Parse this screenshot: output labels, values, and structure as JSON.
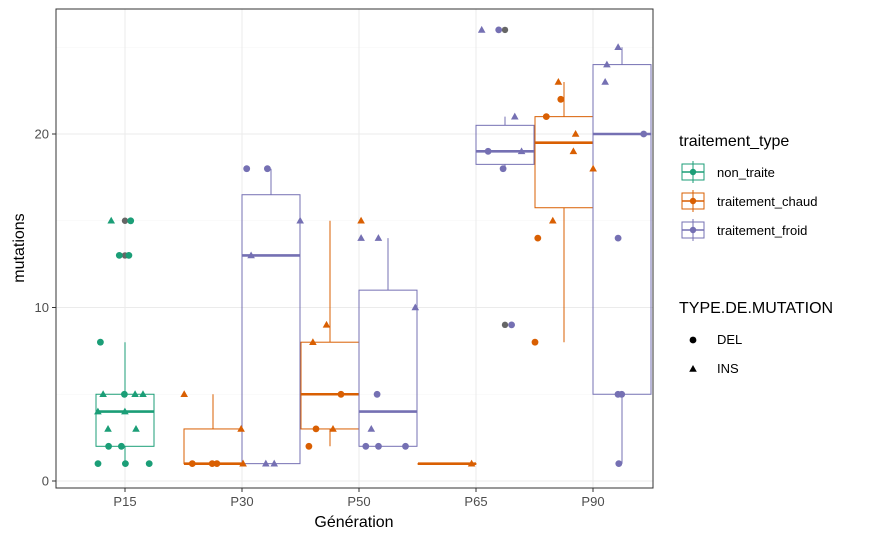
{
  "chart_data": {
    "type": "box",
    "xlabel": "Génération",
    "ylabel": "mutations",
    "categories": [
      "P15",
      "P30",
      "P50",
      "P65",
      "P90"
    ],
    "ylim": [
      -0.3,
      27.5
    ],
    "yticks": [
      0,
      10,
      20
    ],
    "grid": true,
    "series": [
      {
        "name": "non_traite",
        "color": "#1b9e77",
        "boxes": [
          {
            "category": "P15",
            "min": 1,
            "q1": 2,
            "median": 4,
            "q3": 5,
            "max": 8,
            "outliers": [
              13,
              15
            ]
          }
        ]
      },
      {
        "name": "traitement_chaud",
        "color": "#d95f02",
        "boxes": [
          {
            "category": "P30",
            "min": 1,
            "q1": 1,
            "median": 1,
            "q3": 3,
            "max": 5,
            "outliers": []
          },
          {
            "category": "P50",
            "min": 2,
            "q1": 3,
            "median": 5,
            "q3": 8,
            "max": 15,
            "outliers": []
          },
          {
            "category": "P65",
            "min": 1,
            "q1": 1,
            "median": 1,
            "q3": 1,
            "max": 1,
            "outliers": []
          },
          {
            "category": "P90",
            "min": 8,
            "q1": 15.75,
            "median": 19.5,
            "q3": 21,
            "max": 23,
            "outliers": []
          }
        ]
      },
      {
        "name": "traitement_froid",
        "color": "#7570b3",
        "boxes": [
          {
            "category": "P30",
            "min": 1,
            "q1": 1,
            "median": 13,
            "q3": 16.5,
            "max": 18,
            "outliers": []
          },
          {
            "category": "P50",
            "min": 2,
            "q1": 2,
            "median": 4,
            "q3": 11,
            "max": 14,
            "outliers": []
          },
          {
            "category": "P65",
            "min": 18,
            "q1": 18.25,
            "median": 19,
            "q3": 20.5,
            "max": 21,
            "outliers": [
              9,
              26
            ]
          },
          {
            "category": "P90",
            "min": 1,
            "q1": 5,
            "median": 20,
            "q3": 24,
            "max": 25,
            "outliers": []
          }
        ]
      }
    ],
    "points": [
      {
        "group": "non_traite",
        "category": "P15",
        "type": "DEL",
        "values": [
          5,
          13,
          8,
          2,
          2,
          1,
          1,
          1,
          15,
          13
        ]
      },
      {
        "group": "non_traite",
        "category": "P15",
        "type": "INS",
        "values": [
          15,
          5,
          5,
          4,
          4,
          3,
          3,
          5
        ]
      },
      {
        "group": "traitement_chaud",
        "category": "P30",
        "type": "DEL",
        "values": [
          1,
          1,
          1
        ]
      },
      {
        "group": "traitement_chaud",
        "category": "P30",
        "type": "INS",
        "values": [
          5,
          3,
          1
        ]
      },
      {
        "group": "traitement_froid",
        "category": "P30",
        "type": "DEL",
        "values": [
          18,
          18
        ]
      },
      {
        "group": "traitement_froid",
        "category": "P30",
        "type": "INS",
        "values": [
          15,
          13,
          1,
          1
        ]
      },
      {
        "group": "traitement_chaud",
        "category": "P50",
        "type": "DEL",
        "values": [
          5,
          3,
          2
        ]
      },
      {
        "group": "traitement_chaud",
        "category": "P50",
        "type": "INS",
        "values": [
          15,
          9,
          8,
          3
        ]
      },
      {
        "group": "traitement_froid",
        "category": "P50",
        "type": "DEL",
        "values": [
          5,
          2,
          2,
          2
        ]
      },
      {
        "group": "traitement_froid",
        "category": "P50",
        "type": "INS",
        "values": [
          14,
          14,
          10,
          3
        ]
      },
      {
        "group": "traitement_chaud",
        "category": "P65",
        "type": "INS",
        "values": [
          1
        ]
      },
      {
        "group": "traitement_froid",
        "category": "P65",
        "type": "DEL",
        "values": [
          18,
          19,
          9,
          26
        ]
      },
      {
        "group": "traitement_froid",
        "category": "P65",
        "type": "INS",
        "values": [
          19,
          21,
          26
        ]
      },
      {
        "group": "traitement_chaud",
        "category": "P90",
        "type": "DEL",
        "values": [
          21,
          22,
          14,
          8
        ]
      },
      {
        "group": "traitement_chaud",
        "category": "P90",
        "type": "INS",
        "values": [
          23,
          20,
          19,
          18,
          15
        ]
      },
      {
        "group": "traitement_froid",
        "category": "P90",
        "type": "DEL",
        "values": [
          5,
          5,
          14,
          20,
          1
        ]
      },
      {
        "group": "traitement_froid",
        "category": "P90",
        "type": "INS",
        "values": [
          25,
          24,
          23
        ]
      }
    ],
    "legends": [
      {
        "title": "traitement_type",
        "kind": "color",
        "entries": [
          {
            "label": "non_traite",
            "color": "#1b9e77"
          },
          {
            "label": "traitement_chaud",
            "color": "#d95f02"
          },
          {
            "label": "traitement_froid",
            "color": "#7570b3"
          }
        ]
      },
      {
        "title": "TYPE.DE.MUTATION",
        "kind": "shape",
        "entries": [
          {
            "label": "DEL",
            "shape": "circle"
          },
          {
            "label": "INS",
            "shape": "triangle"
          }
        ]
      }
    ]
  }
}
